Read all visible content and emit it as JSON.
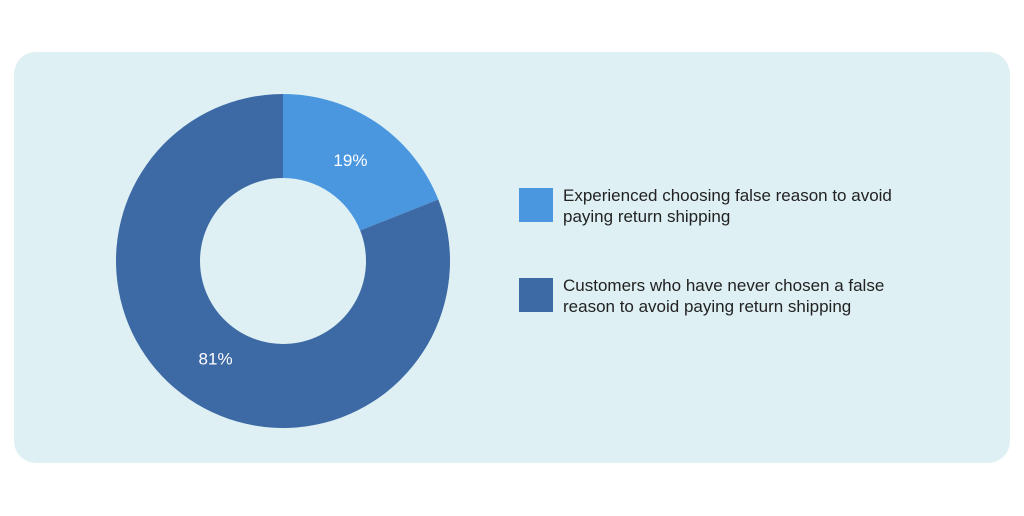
{
  "chart_data": {
    "type": "donut",
    "categories": [
      "Experienced choosing false reason to avoid paying return shipping",
      "Customers who have never chosen a false reason to avoid paying return shipping"
    ],
    "values": [
      19,
      81
    ],
    "value_labels": [
      "19%",
      "81%"
    ],
    "colors": [
      "#4a97e0",
      "#3d6aa5"
    ],
    "legend": "right"
  }
}
